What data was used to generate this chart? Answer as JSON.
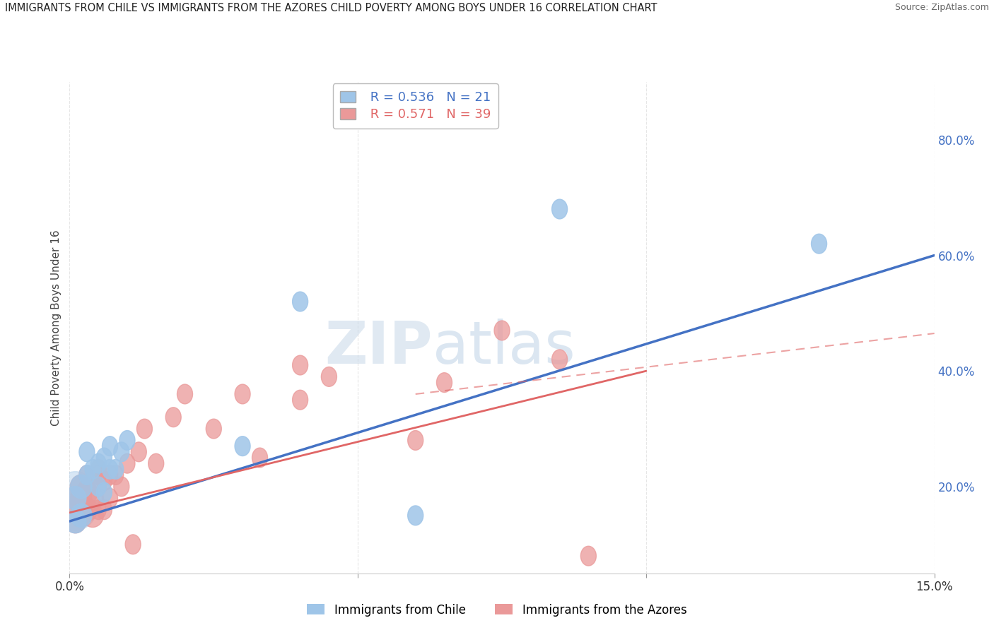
{
  "title": "IMMIGRANTS FROM CHILE VS IMMIGRANTS FROM THE AZORES CHILD POVERTY AMONG BOYS UNDER 16 CORRELATION CHART",
  "source": "Source: ZipAtlas.com",
  "ylabel": "Child Poverty Among Boys Under 16",
  "xlim": [
    0.0,
    0.15
  ],
  "ylim": [
    0.05,
    0.9
  ],
  "yticks_right": [
    0.2,
    0.4,
    0.6,
    0.8
  ],
  "ytick_labels_right": [
    "20.0%",
    "40.0%",
    "60.0%",
    "80.0%"
  ],
  "legend_chile_R": "0.536",
  "legend_chile_N": "21",
  "legend_azores_R": "0.571",
  "legend_azores_N": "39",
  "chile_color": "#9fc5e8",
  "azores_color": "#ea9999",
  "chile_line_color": "#4472c4",
  "azores_line_color": "#e06666",
  "watermark_zip": "ZIP",
  "watermark_atlas": "atlas",
  "chile_scatter_x": [
    0.001,
    0.001,
    0.002,
    0.002,
    0.003,
    0.003,
    0.004,
    0.005,
    0.005,
    0.006,
    0.006,
    0.007,
    0.007,
    0.008,
    0.009,
    0.01,
    0.03,
    0.04,
    0.06,
    0.085,
    0.13
  ],
  "chile_scatter_y": [
    0.14,
    0.18,
    0.15,
    0.2,
    0.22,
    0.26,
    0.23,
    0.2,
    0.24,
    0.19,
    0.25,
    0.23,
    0.27,
    0.23,
    0.26,
    0.28,
    0.27,
    0.52,
    0.15,
    0.68,
    0.62
  ],
  "azores_scatter_x": [
    0.001,
    0.001,
    0.001,
    0.002,
    0.002,
    0.002,
    0.003,
    0.003,
    0.003,
    0.004,
    0.004,
    0.005,
    0.005,
    0.005,
    0.005,
    0.006,
    0.006,
    0.007,
    0.007,
    0.008,
    0.009,
    0.01,
    0.011,
    0.012,
    0.013,
    0.015,
    0.018,
    0.02,
    0.025,
    0.03,
    0.033,
    0.04,
    0.04,
    0.045,
    0.06,
    0.065,
    0.075,
    0.085,
    0.09
  ],
  "azores_scatter_y": [
    0.14,
    0.16,
    0.18,
    0.15,
    0.18,
    0.2,
    0.16,
    0.19,
    0.22,
    0.15,
    0.18,
    0.16,
    0.2,
    0.22,
    0.23,
    0.16,
    0.21,
    0.18,
    0.22,
    0.22,
    0.2,
    0.24,
    0.1,
    0.26,
    0.3,
    0.24,
    0.32,
    0.36,
    0.3,
    0.36,
    0.25,
    0.35,
    0.41,
    0.39,
    0.28,
    0.38,
    0.47,
    0.42,
    0.08
  ],
  "background_color": "#ffffff",
  "grid_color": "#e0e0e0"
}
